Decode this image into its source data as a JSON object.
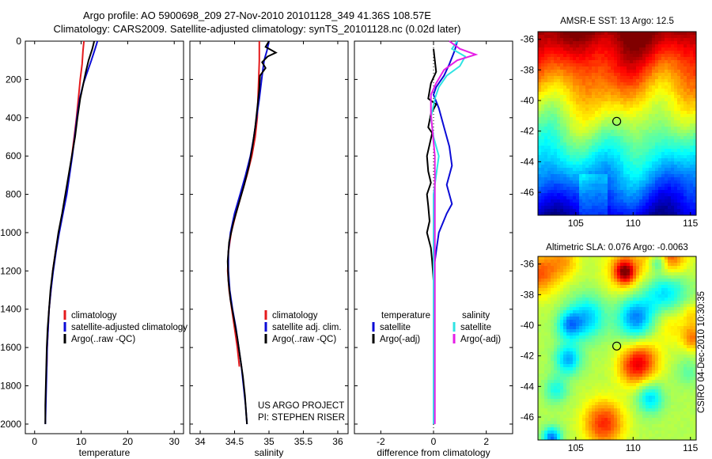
{
  "header": {
    "title_line1": "Argo profile: AO 5900698_209 27-Nov-2010 20101128_349 41.36S 108.57E",
    "title_line2": "Climatology: CARS2009. Satellite-adjusted climatology: synTS_20101128.nc (0.02d later)"
  },
  "colors": {
    "red": "#e41a1c",
    "blue": "#0b0bd6",
    "black": "#000000",
    "cyan": "#2fe3e3",
    "magenta": "#e61ee6"
  },
  "chart_data": [
    {
      "type": "line",
      "xlabel": "temperature",
      "xlim": [
        -2,
        32
      ],
      "xticks": [
        0,
        10,
        20,
        30
      ],
      "ylim": [
        0,
        2050
      ],
      "y_reversed": true,
      "yticks": [
        0,
        200,
        400,
        600,
        800,
        1000,
        1200,
        1400,
        1600,
        1800,
        2000
      ],
      "legend": [
        "climatology",
        "satellite-adjusted climatology",
        "Argo(..raw -QC)"
      ],
      "legend_placement": "lower-right",
      "series": [
        {
          "name": "climatology",
          "color": "red",
          "points": [
            [
              10.6,
              0
            ],
            [
              10.4,
              50
            ],
            [
              10.2,
              120
            ],
            [
              9.8,
              200
            ],
            [
              9.4,
              300
            ],
            [
              9.0,
              400
            ],
            [
              8.5,
              500
            ],
            [
              8.0,
              600
            ],
            [
              7.4,
              700
            ],
            [
              6.8,
              800
            ],
            [
              6.0,
              900
            ],
            [
              5.2,
              1000
            ],
            [
              4.5,
              1100
            ],
            [
              3.9,
              1200
            ],
            [
              3.5,
              1300
            ],
            [
              3.1,
              1400
            ],
            [
              2.9,
              1500
            ],
            [
              2.7,
              1600
            ],
            [
              2.6,
              1700
            ]
          ]
        },
        {
          "name": "satellite-adjusted climatology",
          "color": "blue",
          "points": [
            [
              13.5,
              0
            ],
            [
              13.0,
              40
            ],
            [
              12.2,
              100
            ],
            [
              11.2,
              170
            ],
            [
              10.5,
              220
            ],
            [
              9.7,
              300
            ],
            [
              9.1,
              400
            ],
            [
              8.6,
              500
            ],
            [
              8.1,
              600
            ],
            [
              7.5,
              700
            ],
            [
              6.9,
              800
            ],
            [
              6.1,
              900
            ],
            [
              5.3,
              1000
            ],
            [
              4.6,
              1100
            ],
            [
              4.0,
              1200
            ],
            [
              3.5,
              1300
            ],
            [
              3.1,
              1400
            ],
            [
              2.9,
              1500
            ],
            [
              2.7,
              1600
            ],
            [
              2.6,
              1700
            ],
            [
              2.5,
              1800
            ],
            [
              2.4,
              1900
            ],
            [
              2.3,
              2000
            ]
          ]
        },
        {
          "name": "Argo(..raw -QC)",
          "color": "black",
          "points": [
            [
              12.8,
              0
            ],
            [
              12.4,
              40
            ],
            [
              11.6,
              100
            ],
            [
              11.0,
              160
            ],
            [
              10.5,
              220
            ],
            [
              9.8,
              300
            ],
            [
              9.2,
              400
            ],
            [
              8.7,
              500
            ],
            [
              8.0,
              600
            ],
            [
              7.3,
              700
            ],
            [
              6.6,
              800
            ],
            [
              5.9,
              900
            ],
            [
              5.1,
              1000
            ],
            [
              4.5,
              1100
            ],
            [
              3.9,
              1200
            ],
            [
              3.4,
              1300
            ],
            [
              3.1,
              1400
            ],
            [
              2.8,
              1500
            ],
            [
              2.6,
              1600
            ],
            [
              2.5,
              1700
            ],
            [
              2.4,
              1800
            ],
            [
              2.3,
              1900
            ],
            [
              2.3,
              2000
            ]
          ]
        }
      ]
    },
    {
      "type": "line",
      "xlabel": "salinity",
      "xlim": [
        33.85,
        36.15
      ],
      "xticks": [
        34,
        34.5,
        35,
        35.5,
        36
      ],
      "xtick_labels": [
        "34",
        "34.5",
        "35",
        "35.5",
        "36"
      ],
      "ylim": [
        0,
        2050
      ],
      "y_reversed": true,
      "legend": [
        "climatology",
        "satellite adj. clim.",
        "Argo(..raw -QC)"
      ],
      "legend_placement": "lower-right",
      "annotation": [
        "US ARGO PROJECT",
        "PI: STEPHEN RISER"
      ],
      "series": [
        {
          "name": "climatology",
          "color": "red",
          "points": [
            [
              34.86,
              0
            ],
            [
              34.86,
              100
            ],
            [
              34.85,
              200
            ],
            [
              34.84,
              300
            ],
            [
              34.83,
              400
            ],
            [
              34.8,
              500
            ],
            [
              34.75,
              600
            ],
            [
              34.68,
              700
            ],
            [
              34.6,
              800
            ],
            [
              34.52,
              900
            ],
            [
              34.45,
              1000
            ],
            [
              34.41,
              1100
            ],
            [
              34.4,
              1200
            ],
            [
              34.42,
              1300
            ],
            [
              34.46,
              1400
            ],
            [
              34.5,
              1500
            ],
            [
              34.54,
              1600
            ],
            [
              34.57,
              1700
            ]
          ]
        },
        {
          "name": "satellite adj. clim.",
          "color": "blue",
          "points": [
            [
              35.0,
              0
            ],
            [
              34.97,
              50
            ],
            [
              34.93,
              100
            ],
            [
              34.9,
              180
            ],
            [
              34.86,
              300
            ],
            [
              34.82,
              400
            ],
            [
              34.78,
              500
            ],
            [
              34.73,
              600
            ],
            [
              34.66,
              700
            ],
            [
              34.58,
              800
            ],
            [
              34.5,
              900
            ],
            [
              34.44,
              1000
            ],
            [
              34.41,
              1100
            ],
            [
              34.41,
              1200
            ],
            [
              34.43,
              1300
            ],
            [
              34.47,
              1400
            ],
            [
              34.52,
              1500
            ],
            [
              34.56,
              1600
            ],
            [
              34.6,
              1700
            ],
            [
              34.63,
              1800
            ],
            [
              34.66,
              1900
            ],
            [
              34.68,
              2000
            ]
          ]
        },
        {
          "name": "Argo(..raw -QC)",
          "color": "black",
          "points": [
            [
              35.0,
              0
            ],
            [
              34.95,
              30
            ],
            [
              35.1,
              60
            ],
            [
              34.98,
              80
            ],
            [
              34.9,
              110
            ],
            [
              34.95,
              140
            ],
            [
              34.87,
              180
            ],
            [
              34.86,
              250
            ],
            [
              34.83,
              350
            ],
            [
              34.8,
              450
            ],
            [
              34.76,
              550
            ],
            [
              34.71,
              650
            ],
            [
              34.64,
              750
            ],
            [
              34.56,
              850
            ],
            [
              34.48,
              950
            ],
            [
              34.42,
              1050
            ],
            [
              34.4,
              1150
            ],
            [
              34.41,
              1250
            ],
            [
              34.44,
              1350
            ],
            [
              34.49,
              1450
            ],
            [
              34.54,
              1550
            ],
            [
              34.58,
              1650
            ],
            [
              34.62,
              1750
            ],
            [
              34.65,
              1850
            ],
            [
              34.67,
              1950
            ],
            [
              34.68,
              2000
            ]
          ]
        }
      ]
    },
    {
      "type": "line",
      "xlabel": "difference from climatology",
      "xlim": [
        -3,
        3
      ],
      "xticks": [
        -2,
        0,
        2
      ],
      "ylim": [
        0,
        2050
      ],
      "y_reversed": true,
      "legend": [
        "temperature",
        "satellite",
        "Argo(-adj)",
        "salinity",
        "satellite",
        "Argo(-adj)"
      ],
      "legend_placement": "lower-right",
      "series": [
        {
          "name": "satellite",
          "group": "temperature",
          "color": "blue",
          "points": [
            [
              0.9,
              0
            ],
            [
              0.8,
              50
            ],
            [
              0.6,
              120
            ],
            [
              0.4,
              180
            ],
            [
              0.1,
              240
            ],
            [
              0.0,
              280
            ],
            [
              0.2,
              350
            ],
            [
              0.4,
              450
            ],
            [
              0.6,
              550
            ],
            [
              0.7,
              650
            ],
            [
              0.6,
              700
            ],
            [
              0.5,
              750
            ],
            [
              0.6,
              800
            ],
            [
              0.7,
              850
            ],
            [
              0.5,
              900
            ],
            [
              0.2,
              1000
            ],
            [
              0.1,
              1100
            ],
            [
              0.0,
              1200
            ],
            [
              0.0,
              1400
            ],
            [
              0.0,
              1600
            ],
            [
              0.0,
              1800
            ],
            [
              0.0,
              2000
            ]
          ]
        },
        {
          "name": "Argo(-adj)",
          "group": "temperature",
          "color": "black",
          "points": [
            [
              0.0,
              40
            ],
            [
              0.1,
              160
            ],
            [
              -0.1,
              220
            ],
            [
              -0.2,
              300
            ],
            [
              0.1,
              330
            ],
            [
              -0.1,
              380
            ],
            [
              -0.2,
              450
            ],
            [
              -0.05,
              480
            ],
            [
              -0.15,
              540
            ],
            [
              -0.25,
              600
            ],
            [
              -0.2,
              680
            ],
            [
              -0.1,
              740
            ],
            [
              -0.25,
              800
            ],
            [
              -0.2,
              860
            ],
            [
              -0.15,
              940
            ],
            [
              -0.25,
              1000
            ],
            [
              -0.1,
              1080
            ],
            [
              -0.05,
              1150
            ],
            [
              0.0,
              1250
            ],
            [
              0.0,
              1400
            ],
            [
              0.0,
              1600
            ],
            [
              0.0,
              1800
            ],
            [
              0.0,
              2000
            ]
          ]
        },
        {
          "name": "satellite",
          "group": "salinity",
          "color": "cyan",
          "points": [
            [
              0.9,
              0
            ],
            [
              0.7,
              40
            ],
            [
              1.2,
              80
            ],
            [
              1.0,
              130
            ],
            [
              0.5,
              180
            ],
            [
              0.2,
              240
            ],
            [
              0.05,
              300
            ],
            [
              -0.1,
              400
            ],
            [
              0.0,
              500
            ],
            [
              0.2,
              600
            ],
            [
              0.1,
              700
            ],
            [
              0.0,
              800
            ],
            [
              0.0,
              1000
            ],
            [
              0.0,
              1200
            ],
            [
              0.0,
              1500
            ],
            [
              0.0,
              1800
            ],
            [
              0.0,
              2000
            ]
          ]
        },
        {
          "name": "Argo(-adj)",
          "group": "salinity",
          "color": "magenta",
          "points": [
            [
              0.6,
              0
            ],
            [
              1.0,
              40
            ],
            [
              1.6,
              70
            ],
            [
              0.9,
              100
            ],
            [
              0.4,
              150
            ],
            [
              0.1,
              220
            ],
            [
              -0.1,
              280
            ],
            [
              -0.1,
              380
            ],
            [
              -0.05,
              450
            ],
            [
              0.05,
              600
            ],
            [
              0.05,
              800
            ],
            [
              0.05,
              1000
            ],
            [
              0.05,
              1200
            ],
            [
              0.05,
              1400
            ],
            [
              0.05,
              1700
            ],
            [
              0.05,
              2000
            ]
          ]
        }
      ]
    },
    {
      "type": "heatmap",
      "title": "AMSR-E SST: 13 Argo: 12.5",
      "xlim": [
        101.7,
        115.5
      ],
      "ylim": [
        -47.5,
        -35.5
      ],
      "xticks": [
        105,
        110,
        115
      ],
      "yticks": [
        -36,
        -38,
        -40,
        -42,
        -44,
        -46
      ],
      "marker": {
        "lon": 108.57,
        "lat": -41.36
      },
      "colormap": "jet",
      "gradient_n_to_s": [
        "#a30000",
        "#c81f00",
        "#e45a00",
        "#f29a10",
        "#e8c020",
        "#b7d84a",
        "#6fc86a",
        "#3db07a",
        "#1aa7a0",
        "#1f8fd0",
        "#1c56d8",
        "#0d2aa8"
      ]
    },
    {
      "type": "heatmap",
      "title": "Altimetric SLA: 0.076 Argo: -0.0063",
      "xlim": [
        101.7,
        115.5
      ],
      "ylim": [
        -47.5,
        -35.5
      ],
      "xticks": [
        105,
        110,
        115
      ],
      "yticks": [
        -36,
        -38,
        -40,
        -42,
        -44,
        -46
      ],
      "marker": {
        "lon": 108.57,
        "lat": -41.36
      },
      "colormap": "jet",
      "side_label": "CSIRO 04-Dec-2010 10:30:35"
    }
  ]
}
